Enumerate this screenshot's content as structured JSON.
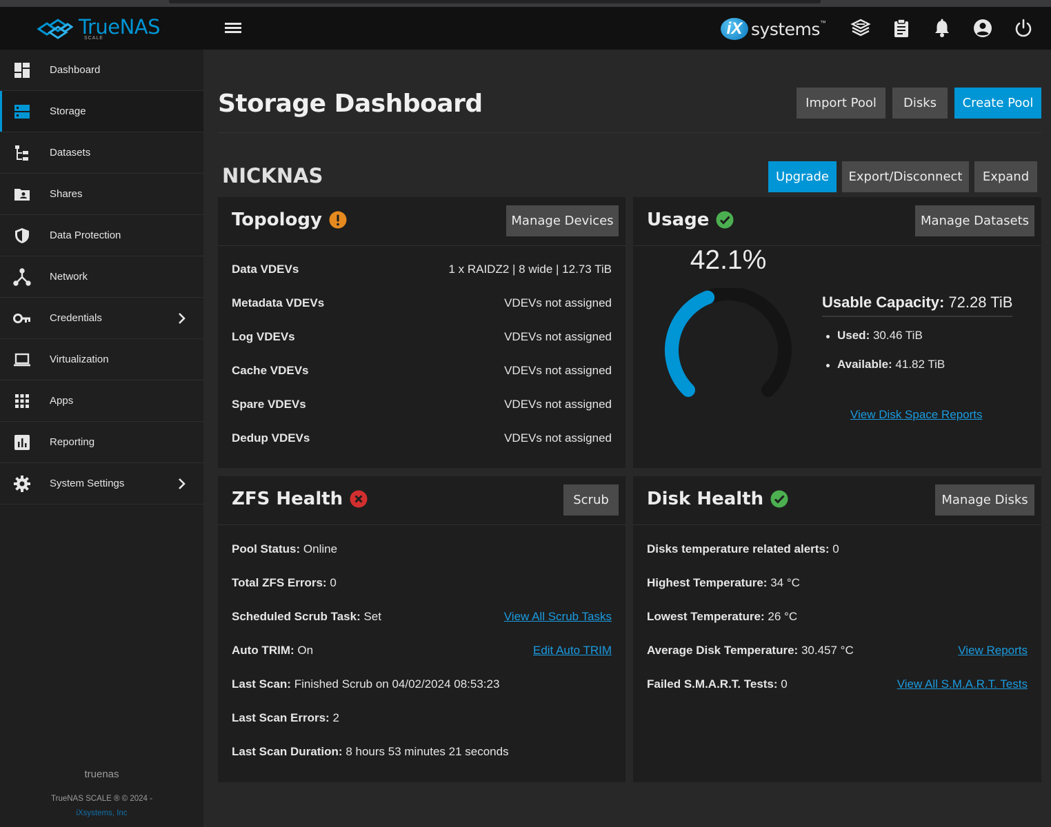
{
  "app": {
    "logo_text": "TrueNAS",
    "logo_sub": "SCALE",
    "vendor_logo_mark": "iX",
    "vendor_logo_text": "systems",
    "vendor_logo_tm": "™"
  },
  "topbar": {
    "icons": [
      "truecommand-icon",
      "clipboard-icon",
      "bell-icon",
      "account-icon",
      "power-icon"
    ]
  },
  "sidebar": {
    "items": [
      {
        "label": "Dashboard",
        "icon": "dashboard-icon"
      },
      {
        "label": "Storage",
        "icon": "storage-icon",
        "active": true
      },
      {
        "label": "Datasets",
        "icon": "datasets-icon"
      },
      {
        "label": "Shares",
        "icon": "shares-icon"
      },
      {
        "label": "Data Protection",
        "icon": "shield-icon"
      },
      {
        "label": "Network",
        "icon": "network-icon"
      },
      {
        "label": "Credentials",
        "icon": "key-icon",
        "has_children": true
      },
      {
        "label": "Virtualization",
        "icon": "laptop-icon"
      },
      {
        "label": "Apps",
        "icon": "apps-grid-icon"
      },
      {
        "label": "Reporting",
        "icon": "chart-icon"
      },
      {
        "label": "System Settings",
        "icon": "gear-icon",
        "has_children": true
      }
    ],
    "hostname": "truenas",
    "copyright": "TrueNAS SCALE ® © 2024 -",
    "company": "iXsystems, Inc"
  },
  "header": {
    "title": "Storage Dashboard",
    "buttons": {
      "import_pool": "Import Pool",
      "disks": "Disks",
      "create_pool": "Create Pool"
    }
  },
  "pool": {
    "name": "NICKNAS",
    "buttons": {
      "upgrade": "Upgrade",
      "export": "Export/Disconnect",
      "expand": "Expand"
    }
  },
  "topology": {
    "title": "Topology",
    "status": "warning",
    "button": "Manage Devices",
    "rows": [
      {
        "label": "Data VDEVs",
        "value": "1 x RAIDZ2 | 8 wide | 12.73 TiB"
      },
      {
        "label": "Metadata VDEVs",
        "value": "VDEVs not assigned"
      },
      {
        "label": "Log VDEVs",
        "value": "VDEVs not assigned"
      },
      {
        "label": "Cache VDEVs",
        "value": "VDEVs not assigned"
      },
      {
        "label": "Spare VDEVs",
        "value": "VDEVs not assigned"
      },
      {
        "label": "Dedup VDEVs",
        "value": "VDEVs not assigned"
      }
    ]
  },
  "usage": {
    "title": "Usage",
    "status": "ok",
    "button": "Manage Datasets",
    "percent_label": "42.1%",
    "percent_value": 42.1,
    "capacity_label": "Usable Capacity:",
    "capacity_value": "72.28 TiB",
    "used_label": "Used:",
    "used_value": "30.46 TiB",
    "available_label": "Available:",
    "available_value": "41.82 TiB",
    "link": "View Disk Space Reports",
    "colors": {
      "arc": "#0095d5",
      "track": "#141414"
    }
  },
  "zfs_health": {
    "title": "ZFS Health",
    "status": "error",
    "button": "Scrub",
    "pool_status_label": "Pool Status:",
    "pool_status_value": "Online",
    "errors_label": "Total ZFS Errors:",
    "errors_value": "0",
    "scrub_task_label": "Scheduled Scrub Task:",
    "scrub_task_value": "Set",
    "scrub_task_link": "View All Scrub Tasks",
    "trim_label": "Auto TRIM:",
    "trim_value": "On",
    "trim_link": "Edit Auto TRIM",
    "last_scan_label": "Last Scan:",
    "last_scan_value": "Finished Scrub on 04/02/2024 08:53:23",
    "last_scan_errors_label": "Last Scan Errors:",
    "last_scan_errors_value": "2",
    "last_scan_duration_label": "Last Scan Duration:",
    "last_scan_duration_value": "8 hours 53 minutes 21 seconds"
  },
  "disk_health": {
    "title": "Disk Health",
    "status": "ok",
    "button": "Manage Disks",
    "temp_alerts_label": "Disks temperature related alerts:",
    "temp_alerts_value": "0",
    "highest_label": "Highest Temperature:",
    "highest_value": "34 °C",
    "lowest_label": "Lowest Temperature:",
    "lowest_value": "26 °C",
    "avg_label": "Average Disk Temperature:",
    "avg_value": "30.457 °C",
    "avg_link": "View Reports",
    "smart_label": "Failed S.M.A.R.T. Tests:",
    "smart_value": "0",
    "smart_link": "View All S.M.A.R.T. Tests"
  },
  "colors": {
    "accent": "#0095d5",
    "ok": "#4caf50",
    "warning": "#e68a1f",
    "error": "#d32f2f"
  }
}
